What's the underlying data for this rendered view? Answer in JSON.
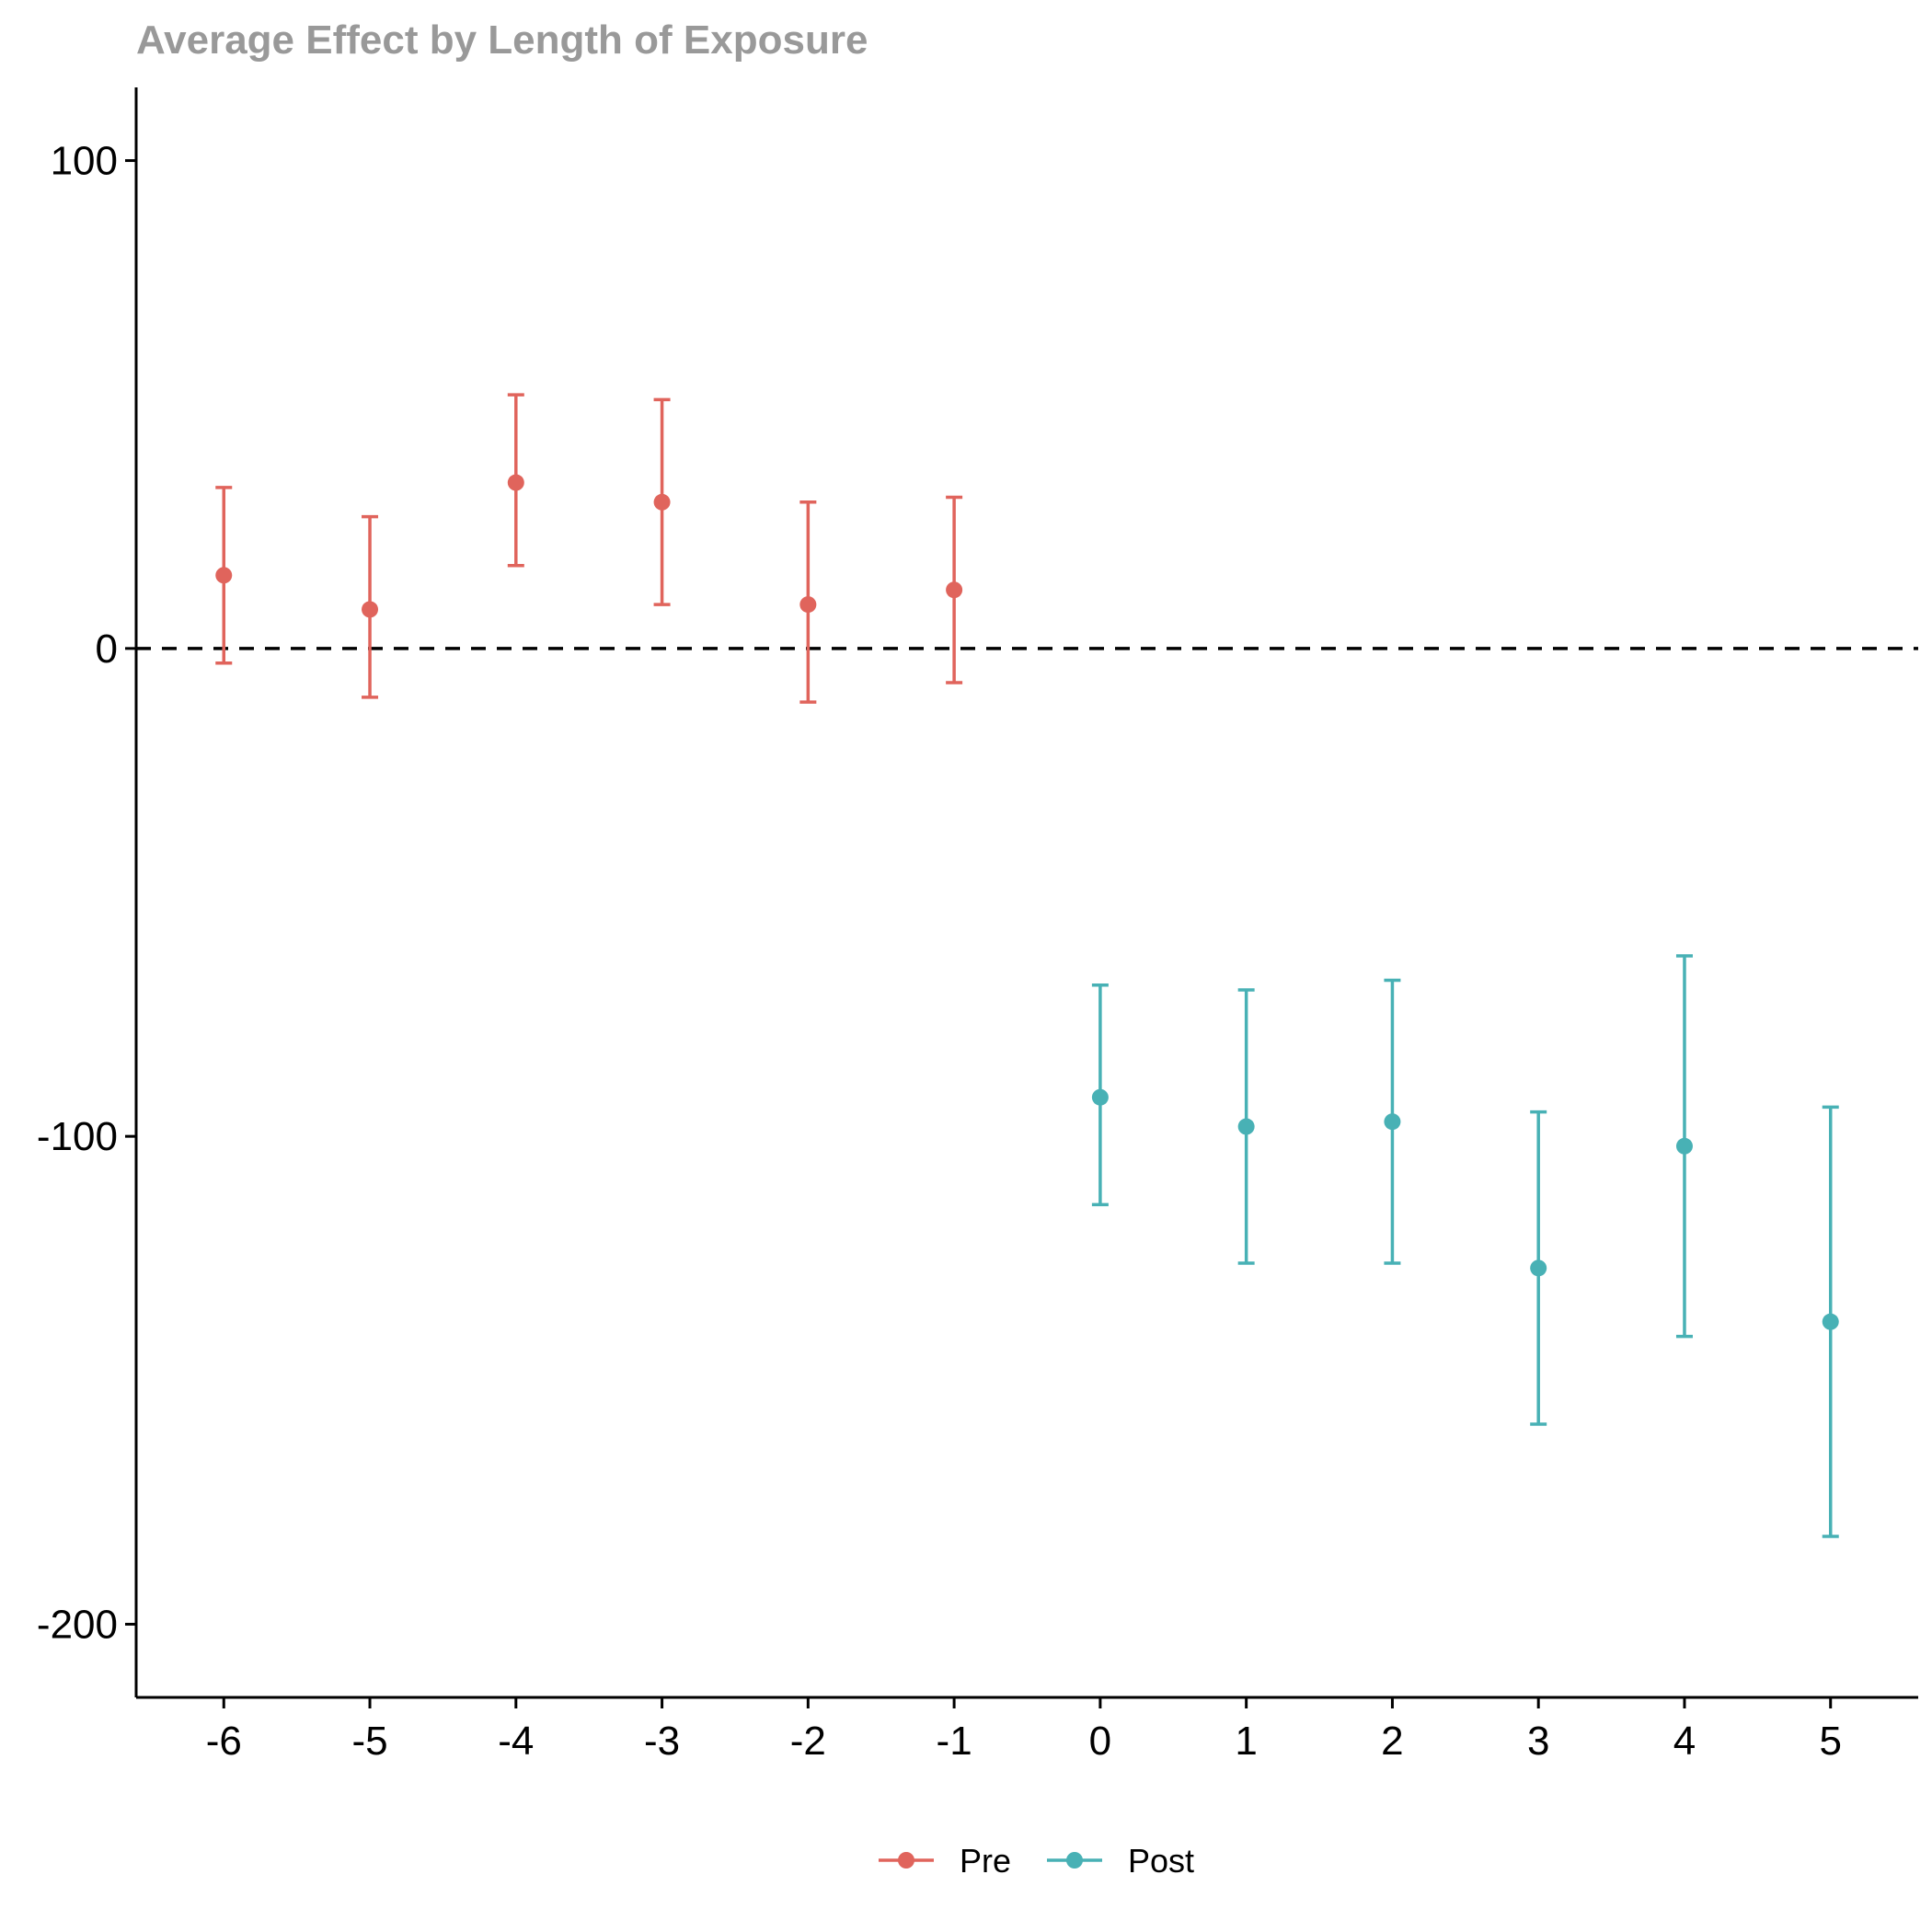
{
  "chart_data": {
    "type": "scatter",
    "title": "Average Effect by Length of Exposure",
    "xlabel": "",
    "ylabel": "",
    "x_ticks": [
      "-6",
      "-5",
      "-4",
      "-3",
      "-2",
      "-1",
      "0",
      "1",
      "2",
      "3",
      "4",
      "5"
    ],
    "y_ticks": [
      "100",
      "0",
      "-100",
      "-200"
    ],
    "xlim": [
      -6.6,
      5.6
    ],
    "ylim": [
      -215,
      115
    ],
    "grid": false,
    "reference_line": {
      "y": 0,
      "style": "dashed",
      "color": "#000000"
    },
    "legend": {
      "position": "bottom",
      "entries": [
        "Pre",
        "Post"
      ]
    },
    "series": [
      {
        "name": "Pre",
        "color": "#E0645C",
        "points": [
          {
            "x": -6,
            "y": 15,
            "lower": -3,
            "upper": 33
          },
          {
            "x": -5,
            "y": 8,
            "lower": -10,
            "upper": 27
          },
          {
            "x": -4,
            "y": 34,
            "lower": 17,
            "upper": 52
          },
          {
            "x": -3,
            "y": 30,
            "lower": 9,
            "upper": 51
          },
          {
            "x": -2,
            "y": 9,
            "lower": -11,
            "upper": 30
          },
          {
            "x": -1,
            "y": 12,
            "lower": -7,
            "upper": 31
          }
        ]
      },
      {
        "name": "Post",
        "color": "#48B1B5",
        "points": [
          {
            "x": 0,
            "y": -92,
            "lower": -114,
            "upper": -69
          },
          {
            "x": 1,
            "y": -98,
            "lower": -126,
            "upper": -70
          },
          {
            "x": 2,
            "y": -97,
            "lower": -126,
            "upper": -68
          },
          {
            "x": 3,
            "y": -127,
            "lower": -159,
            "upper": -95
          },
          {
            "x": 4,
            "y": -102,
            "lower": -141,
            "upper": -63
          },
          {
            "x": 5,
            "y": -138,
            "lower": -182,
            "upper": -94
          }
        ]
      }
    ]
  }
}
